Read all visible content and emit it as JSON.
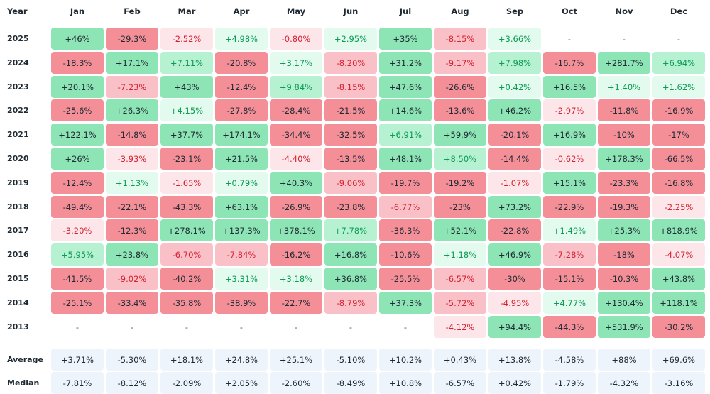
{
  "chart_data": {
    "type": "heatmap",
    "corner_label": "Year",
    "columns": [
      "Jan",
      "Feb",
      "Mar",
      "Apr",
      "May",
      "Jun",
      "Jul",
      "Aug",
      "Sep",
      "Oct",
      "Nov",
      "Dec"
    ],
    "rows": [
      {
        "label": "2025",
        "values": [
          "+46%",
          "-29.3%",
          "-2.52%",
          "+4.98%",
          "-0.80%",
          "+2.95%",
          "+35%",
          "-8.15%",
          "+3.66%",
          "-",
          "-",
          "-"
        ]
      },
      {
        "label": "2024",
        "values": [
          "-18.3%",
          "+17.1%",
          "+7.11%",
          "-20.8%",
          "+3.17%",
          "-8.20%",
          "+31.2%",
          "-9.17%",
          "+7.98%",
          "-16.7%",
          "+281.7%",
          "+6.94%"
        ]
      },
      {
        "label": "2023",
        "values": [
          "+20.1%",
          "-7.23%",
          "+43%",
          "-12.4%",
          "+9.84%",
          "-8.15%",
          "+47.6%",
          "-26.6%",
          "+0.42%",
          "+16.5%",
          "+1.40%",
          "+1.62%"
        ]
      },
      {
        "label": "2022",
        "values": [
          "-25.6%",
          "+26.3%",
          "+4.15%",
          "-27.8%",
          "-28.4%",
          "-21.5%",
          "+14.6%",
          "-13.6%",
          "+46.2%",
          "-2.97%",
          "-11.8%",
          "-16.9%"
        ]
      },
      {
        "label": "2021",
        "values": [
          "+122.1%",
          "-14.8%",
          "+37.7%",
          "+174.1%",
          "-34.4%",
          "-32.5%",
          "+6.91%",
          "+59.9%",
          "-20.1%",
          "+16.9%",
          "-10%",
          "-17%"
        ]
      },
      {
        "label": "2020",
        "values": [
          "+26%",
          "-3.93%",
          "-23.1%",
          "+21.5%",
          "-4.40%",
          "-13.5%",
          "+48.1%",
          "+8.50%",
          "-14.4%",
          "-0.62%",
          "+178.3%",
          "-66.5%"
        ]
      },
      {
        "label": "2019",
        "values": [
          "-12.4%",
          "+1.13%",
          "-1.65%",
          "+0.79%",
          "+40.3%",
          "-9.06%",
          "-19.7%",
          "-19.2%",
          "-1.07%",
          "+15.1%",
          "-23.3%",
          "-16.8%"
        ]
      },
      {
        "label": "2018",
        "values": [
          "-49.4%",
          "-22.1%",
          "-43.3%",
          "+63.1%",
          "-26.9%",
          "-23.8%",
          "-6.77%",
          "-23%",
          "+73.2%",
          "-22.9%",
          "-19.3%",
          "-2.25%"
        ]
      },
      {
        "label": "2017",
        "values": [
          "-3.20%",
          "-12.3%",
          "+278.1%",
          "+137.3%",
          "+378.1%",
          "+7.78%",
          "-36.3%",
          "+52.1%",
          "-22.8%",
          "+1.49%",
          "+25.3%",
          "+818.9%"
        ]
      },
      {
        "label": "2016",
        "values": [
          "+5.95%",
          "+23.8%",
          "-6.70%",
          "-7.84%",
          "-16.2%",
          "+16.8%",
          "-10.6%",
          "+1.18%",
          "+46.9%",
          "-7.28%",
          "-18%",
          "-4.07%"
        ]
      },
      {
        "label": "2015",
        "values": [
          "-41.5%",
          "-9.02%",
          "-40.2%",
          "+3.31%",
          "+3.18%",
          "+36.8%",
          "-25.5%",
          "-6.57%",
          "-30%",
          "-15.1%",
          "-10.3%",
          "+43.8%"
        ]
      },
      {
        "label": "2014",
        "values": [
          "-25.1%",
          "-33.4%",
          "-35.8%",
          "-38.9%",
          "-22.7%",
          "-8.79%",
          "+37.3%",
          "-5.72%",
          "-4.95%",
          "+4.77%",
          "+130.4%",
          "+118.1%"
        ]
      },
      {
        "label": "2013",
        "values": [
          "-",
          "-",
          "-",
          "-",
          "-",
          "-",
          "-",
          "-4.12%",
          "+94.4%",
          "-44.3%",
          "+531.9%",
          "-30.2%"
        ]
      }
    ],
    "summary_rows": [
      {
        "label": "Average",
        "values": [
          "+3.71%",
          "-5.30%",
          "+18.1%",
          "+24.8%",
          "+25.1%",
          "-5.10%",
          "+10.2%",
          "+0.43%",
          "+13.8%",
          "-4.58%",
          "+88%",
          "+69.6%"
        ]
      },
      {
        "label": "Median",
        "values": [
          "-7.81%",
          "-8.12%",
          "-2.09%",
          "+2.05%",
          "-2.60%",
          "-8.49%",
          "+10.8%",
          "-6.57%",
          "+0.42%",
          "-1.79%",
          "-4.32%",
          "-3.16%"
        ]
      }
    ],
    "colors": {
      "pos_strong": "#8de5b6",
      "pos_mid": "#b6f1d2",
      "pos_light": "#e3fbef",
      "neg_strong": "#f48f98",
      "neg_mid": "#f9c1c7",
      "neg_light": "#fde6ea",
      "pos_text": "#0c9b52",
      "neg_text": "#d9202f",
      "strong_text": "#1f2a33"
    }
  }
}
